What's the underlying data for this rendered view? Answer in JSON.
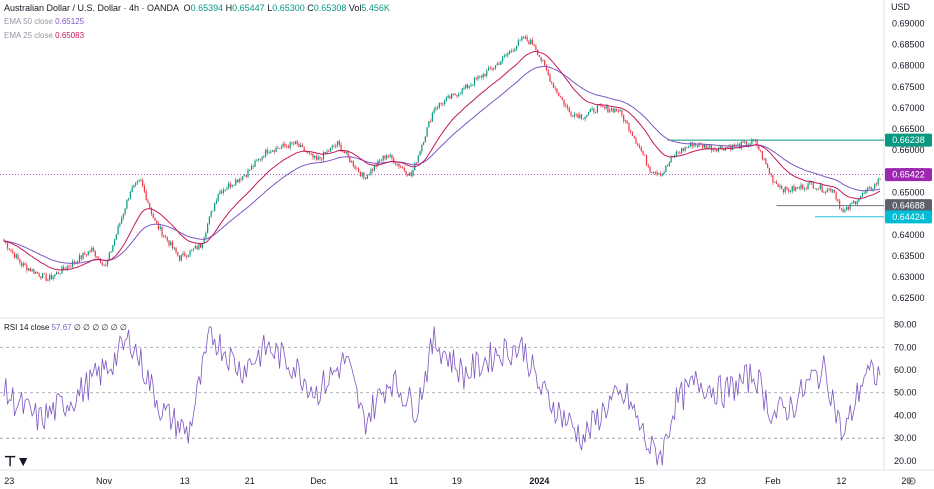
{
  "legend": {
    "symbol": "Australian Dollar / U.S. Dollar · 4h · OANDA",
    "ohlc": [
      {
        "label": "O",
        "value": "0.65394"
      },
      {
        "label": "H",
        "value": "0.65447"
      },
      {
        "label": "L",
        "value": "0.65300"
      },
      {
        "label": "C",
        "value": "0.65308"
      }
    ],
    "vol_label": "Vol",
    "vol_value": "5.456K",
    "ema50_label": "EMA 50 close",
    "ema50_value": "0.65125",
    "ema25_label": "EMA 25 close",
    "ema25_value": "0.65083"
  },
  "currency": "USD",
  "rsi_legend": {
    "label": "RSI 14 close",
    "value": "57.67",
    "extra": "∅ ∅ ∅ ∅ ∅ ∅"
  },
  "colors": {
    "up": "#089981",
    "down": "#f23645",
    "ema50": "#7e57c2",
    "ema25": "#c2185b",
    "rsi": "#7e57c2",
    "resistance_label": "#089981",
    "current_label": "#9c27b0",
    "support_label": "#00bcd4",
    "mid_label": "#5d606b"
  },
  "chart_data": [
    {
      "type": "candlestick",
      "title": "Australian Dollar / U.S. Dollar · 4h · OANDA",
      "x_ticks": [
        {
          "label": "23",
          "i": 3
        },
        {
          "label": "Nov",
          "i": 57
        },
        {
          "label": "13",
          "i": 103
        },
        {
          "label": "21",
          "i": 140
        },
        {
          "label": "Dec",
          "i": 179
        },
        {
          "label": "11",
          "i": 222
        },
        {
          "label": "19",
          "i": 258
        },
        {
          "label": "2024",
          "i": 305,
          "bold": true
        },
        {
          "label": "15",
          "i": 362
        },
        {
          "label": "23",
          "i": 397
        },
        {
          "label": "Feb",
          "i": 438
        },
        {
          "label": "12",
          "i": 477
        },
        {
          "label": "20",
          "i": 514
        }
      ],
      "y_ticks": [
        "0.69000",
        "0.68500",
        "0.68000",
        "0.67500",
        "0.67000",
        "0.66500",
        "0.66000",
        "0.65500",
        "0.65000",
        "0.64500",
        "0.64000",
        "0.63500",
        "0.63000",
        "0.62500"
      ],
      "ylim": [
        0.6215,
        0.6915
      ],
      "key_points": [
        {
          "i": 0,
          "price": 0.6385
        },
        {
          "i": 10,
          "price": 0.633
        },
        {
          "i": 25,
          "price": 0.6295
        },
        {
          "i": 38,
          "price": 0.633
        },
        {
          "i": 50,
          "price": 0.6365
        },
        {
          "i": 58,
          "price": 0.6325
        },
        {
          "i": 72,
          "price": 0.6505
        },
        {
          "i": 78,
          "price": 0.6525
        },
        {
          "i": 86,
          "price": 0.643
        },
        {
          "i": 100,
          "price": 0.6345
        },
        {
          "i": 112,
          "price": 0.6375
        },
        {
          "i": 122,
          "price": 0.65
        },
        {
          "i": 138,
          "price": 0.6545
        },
        {
          "i": 150,
          "price": 0.66
        },
        {
          "i": 166,
          "price": 0.6615
        },
        {
          "i": 178,
          "price": 0.6575
        },
        {
          "i": 190,
          "price": 0.6615
        },
        {
          "i": 205,
          "price": 0.6535
        },
        {
          "i": 218,
          "price": 0.659
        },
        {
          "i": 232,
          "price": 0.654
        },
        {
          "i": 245,
          "price": 0.67
        },
        {
          "i": 262,
          "price": 0.6745
        },
        {
          "i": 280,
          "price": 0.68
        },
        {
          "i": 296,
          "price": 0.6865
        },
        {
          "i": 302,
          "price": 0.685
        },
        {
          "i": 312,
          "price": 0.676
        },
        {
          "i": 322,
          "price": 0.669
        },
        {
          "i": 330,
          "price": 0.668
        },
        {
          "i": 338,
          "price": 0.67
        },
        {
          "i": 350,
          "price": 0.6695
        },
        {
          "i": 358,
          "price": 0.664
        },
        {
          "i": 368,
          "price": 0.6555
        },
        {
          "i": 375,
          "price": 0.6545
        },
        {
          "i": 382,
          "price": 0.659
        },
        {
          "i": 392,
          "price": 0.6615
        },
        {
          "i": 405,
          "price": 0.6605
        },
        {
          "i": 418,
          "price": 0.661
        },
        {
          "i": 428,
          "price": 0.662
        },
        {
          "i": 438,
          "price": 0.653
        },
        {
          "i": 445,
          "price": 0.6505
        },
        {
          "i": 452,
          "price": 0.651
        },
        {
          "i": 460,
          "price": 0.652
        },
        {
          "i": 468,
          "price": 0.6505
        },
        {
          "i": 472,
          "price": 0.651
        },
        {
          "i": 478,
          "price": 0.645
        },
        {
          "i": 486,
          "price": 0.6485
        },
        {
          "i": 494,
          "price": 0.651
        },
        {
          "i": 499,
          "price": 0.6531
        }
      ],
      "candle_count": 500,
      "price_lines": [
        {
          "price": 0.66238,
          "label": "0.66238",
          "role": "resistance",
          "from_i": 378
        },
        {
          "price": 0.65422,
          "label": "0.65422",
          "role": "current",
          "dotted_full": true
        },
        {
          "price": 0.64688,
          "label": "0.64688",
          "role": "mid",
          "from_i": 440
        },
        {
          "price": 0.64424,
          "label": "0.64424",
          "role": "support",
          "from_i": 462
        }
      ],
      "series": [
        {
          "name": "EMA 50 close",
          "value": 0.65125
        },
        {
          "name": "EMA 25 close",
          "value": 0.65083
        }
      ]
    },
    {
      "type": "line",
      "title": "RSI 14 close",
      "y_ticks": [
        "80.00",
        "70.00",
        "60.00",
        "50.00",
        "40.00",
        "30.00",
        "20.00"
      ],
      "ylim": [
        16,
        82
      ],
      "bands": [
        70,
        50,
        30
      ],
      "key_points": [
        {
          "i": 0,
          "v": 50
        },
        {
          "i": 20,
          "v": 38
        },
        {
          "i": 40,
          "v": 48
        },
        {
          "i": 60,
          "v": 62
        },
        {
          "i": 72,
          "v": 74
        },
        {
          "i": 90,
          "v": 42
        },
        {
          "i": 105,
          "v": 32
        },
        {
          "i": 118,
          "v": 76
        },
        {
          "i": 135,
          "v": 60
        },
        {
          "i": 150,
          "v": 70
        },
        {
          "i": 165,
          "v": 62
        },
        {
          "i": 178,
          "v": 50
        },
        {
          "i": 195,
          "v": 65
        },
        {
          "i": 205,
          "v": 37
        },
        {
          "i": 220,
          "v": 56
        },
        {
          "i": 235,
          "v": 43
        },
        {
          "i": 245,
          "v": 73
        },
        {
          "i": 262,
          "v": 58
        },
        {
          "i": 282,
          "v": 68
        },
        {
          "i": 296,
          "v": 70
        },
        {
          "i": 305,
          "v": 52
        },
        {
          "i": 318,
          "v": 40
        },
        {
          "i": 330,
          "v": 30
        },
        {
          "i": 345,
          "v": 46
        },
        {
          "i": 355,
          "v": 48
        },
        {
          "i": 368,
          "v": 25
        },
        {
          "i": 375,
          "v": 23
        },
        {
          "i": 382,
          "v": 45
        },
        {
          "i": 395,
          "v": 55
        },
        {
          "i": 410,
          "v": 50
        },
        {
          "i": 428,
          "v": 58
        },
        {
          "i": 438,
          "v": 40
        },
        {
          "i": 450,
          "v": 45
        },
        {
          "i": 460,
          "v": 56
        },
        {
          "i": 468,
          "v": 60
        },
        {
          "i": 478,
          "v": 30
        },
        {
          "i": 490,
          "v": 58
        },
        {
          "i": 499,
          "v": 57.67
        }
      ]
    }
  ]
}
